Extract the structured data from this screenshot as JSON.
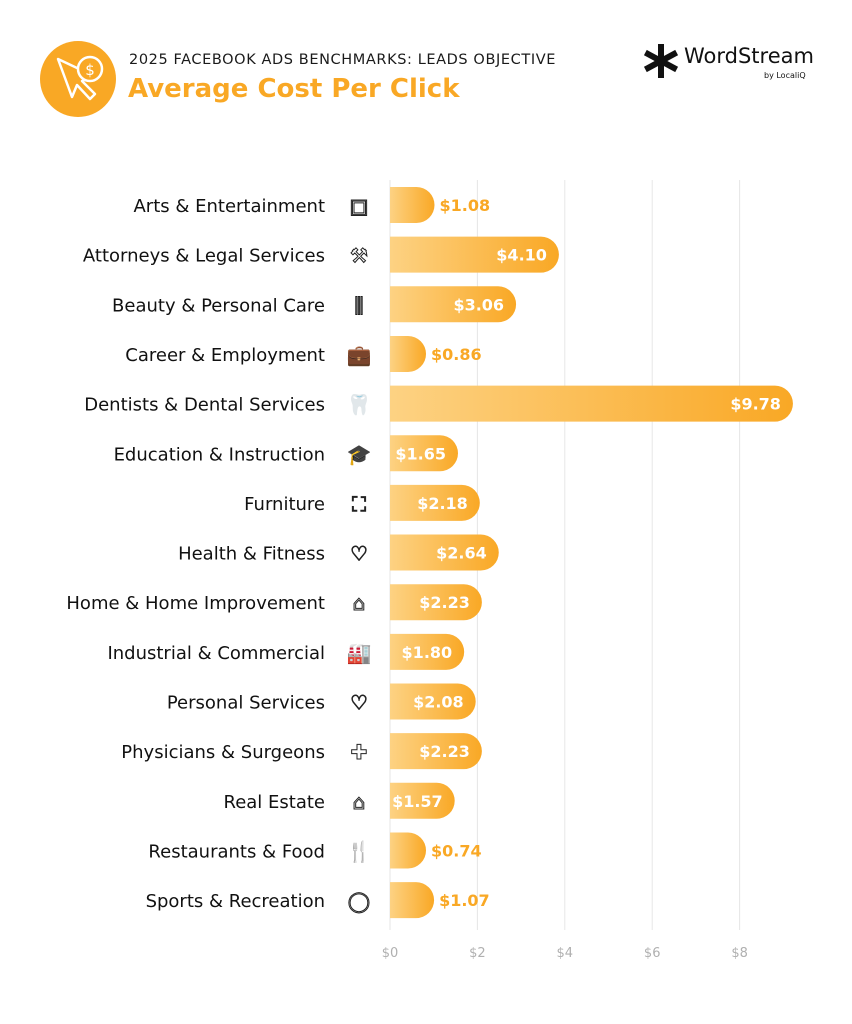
{
  "header": {
    "subtitle": "2025 FACEBOOK ADS BENCHMARKS: LEADS OBJECTIVE",
    "title": "Average Cost Per Click",
    "logo": "WordStream",
    "logo_by": "by LocaliQ",
    "badge_icon": "cursor-dollar-icon"
  },
  "chart_data": {
    "type": "bar",
    "orientation": "horizontal",
    "title": "Average Cost Per Click",
    "categories": [
      "Arts & Entertainment",
      "Attorneys & Legal Services",
      "Beauty & Personal Care",
      "Career & Employment",
      "Dentists & Dental Services",
      "Education & Instruction",
      "Furniture",
      "Health & Fitness",
      "Home & Home Improvement",
      "Industrial & Commercial",
      "Personal Services",
      "Physicians & Surgeons",
      "Real Estate",
      "Restaurants & Food",
      "Sports & Recreation"
    ],
    "icons": [
      "picture-icon",
      "gavel-icon",
      "comb-icon",
      "briefcase-icon",
      "tooth-icon",
      "graduation-cap-icon",
      "armchair-icon",
      "heart-icon",
      "house-icon",
      "factory-icon",
      "hand-heart-icon",
      "medical-cross-icon",
      "storefront-icon",
      "fork-knife-icon",
      "ball-icon"
    ],
    "values": [
      1.08,
      4.1,
      3.06,
      0.86,
      9.78,
      1.65,
      2.18,
      2.64,
      2.23,
      1.8,
      2.08,
      2.23,
      1.57,
      0.74,
      1.07
    ],
    "data_labels": [
      "$1.08",
      "$4.10",
      "$3.06",
      "$0.86",
      "$9.78",
      "$1.65",
      "$2.18",
      "$2.64",
      "$2.23",
      "$1.80",
      "$2.08",
      "$2.23",
      "$1.57",
      "$0.74",
      "$1.07"
    ],
    "x_ticks": [
      "$0",
      "$2",
      "$4",
      "$6",
      "$8"
    ],
    "x_tick_values": [
      0,
      2,
      4,
      6,
      8
    ],
    "grid": true,
    "colors": {
      "bar_start": "#fdd283",
      "bar_end": "#f9a825",
      "label_inside": "#ffffff",
      "label_outside": "#f9a825",
      "grid": "#e6e6e6",
      "tick": "#b0b0b0"
    }
  }
}
